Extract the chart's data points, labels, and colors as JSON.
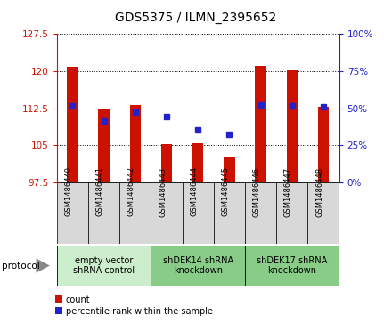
{
  "title": "GDS5375 / ILMN_2395652",
  "samples": [
    "GSM1486440",
    "GSM1486441",
    "GSM1486442",
    "GSM1486443",
    "GSM1486444",
    "GSM1486445",
    "GSM1486446",
    "GSM1486447",
    "GSM1486448"
  ],
  "bar_values": [
    120.8,
    112.5,
    113.2,
    105.2,
    105.5,
    102.5,
    121.0,
    120.2,
    112.8
  ],
  "dot_values": [
    113.0,
    110.0,
    111.8,
    110.8,
    108.2,
    107.2,
    113.2,
    113.0,
    112.8
  ],
  "ymin": 97.5,
  "ymax": 127.5,
  "yticks_left": [
    97.5,
    105,
    112.5,
    120,
    127.5
  ],
  "yticks_right_pct": [
    0,
    25,
    50,
    75,
    100
  ],
  "bar_color": "#cc1100",
  "dot_color": "#2222cc",
  "bar_width": 0.35,
  "groups": [
    {
      "label": "empty vector\nshRNA control",
      "start": 0,
      "end": 3,
      "color": "#cceecc"
    },
    {
      "label": "shDEK14 shRNA\nknockdown",
      "start": 3,
      "end": 6,
      "color": "#88cc88"
    },
    {
      "label": "shDEK17 shRNA\nknockdown",
      "start": 6,
      "end": 9,
      "color": "#88cc88"
    }
  ],
  "protocol_label": "protocol",
  "legend_count": "count",
  "legend_percentile": "percentile rank within the sample",
  "bg_color": "#ffffff",
  "tick_label_color_left": "#cc1100",
  "tick_label_color_right": "#2222cc",
  "title_fontsize": 10,
  "tick_fontsize": 7.5,
  "sample_fontsize": 6.0,
  "group_fontsize": 7.0,
  "legend_fontsize": 7.0
}
